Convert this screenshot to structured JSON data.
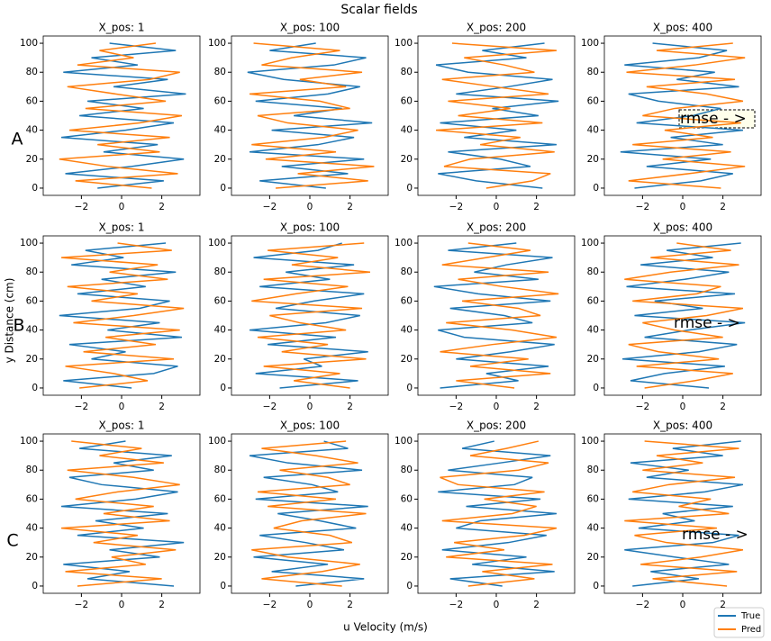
{
  "figure": {
    "title": "Scalar fields",
    "xlabel": "u Velocity (m/s)",
    "ylabel": "y Distance (cm)",
    "row_labels": [
      "A",
      "B",
      "C"
    ]
  },
  "chart_data": [
    {
      "type": "line",
      "title": "X_pos: 1",
      "y": [
        0,
        5,
        10,
        15,
        20,
        25,
        30,
        35,
        40,
        45,
        50,
        55,
        60,
        65,
        70,
        75,
        80,
        85,
        90,
        95,
        100
      ],
      "xlim": [
        -3.9,
        3.9
      ],
      "xticks": [
        {
          "value": -2,
          "label": "−2"
        },
        0,
        2
      ],
      "ylim": [
        -5,
        105
      ],
      "yticks": [
        0,
        20,
        40,
        60,
        80,
        100
      ],
      "series": [
        {
          "name": "True",
          "color": "#1f77b4",
          "values": [
            -1.2,
            2.1,
            -2.8,
            0.5,
            3.1,
            -0.9,
            1.8,
            -3.0,
            0.2,
            2.6,
            -2.1,
            1.1,
            -1.7,
            3.2,
            -0.4,
            2.3,
            -2.9,
            0.8,
            -1.5,
            2.7,
            -0.6
          ]
        },
        {
          "name": "Pred",
          "color": "#ff7f0e",
          "values": [
            1.5,
            -2.3,
            2.8,
            -0.7,
            -3.1,
            1.9,
            -1.2,
            2.4,
            -2.6,
            0.9,
            3.0,
            -1.8,
            2.2,
            -0.3,
            -2.7,
            1.4,
            2.9,
            -2.2,
            0.6,
            -1.1,
            1.7
          ]
        }
      ]
    },
    {
      "type": "line",
      "title": "X_pos: 100",
      "y": [
        0,
        5,
        10,
        15,
        20,
        25,
        30,
        35,
        40,
        45,
        50,
        55,
        60,
        65,
        70,
        75,
        80,
        85,
        90,
        95,
        100
      ],
      "xlim": [
        -3.9,
        3.9
      ],
      "xticks": [
        {
          "value": -2,
          "label": "−2"
        },
        0,
        2
      ],
      "ylim": [
        -5,
        105
      ],
      "yticks": [
        0,
        20,
        40,
        60,
        80,
        100
      ],
      "series": [
        {
          "name": "True",
          "color": "#1f77b4",
          "values": [
            0.8,
            -2.5,
            1.9,
            -1.4,
            2.7,
            -3.0,
            0.4,
            2.2,
            -1.9,
            3.1,
            -0.8,
            1.6,
            -2.7,
            0.9,
            2.5,
            -1.3,
            -3.1,
            1.2,
            2.8,
            -2.0,
            0.3
          ]
        },
        {
          "name": "Pred",
          "color": "#ff7f0e",
          "values": [
            -1.7,
            2.9,
            -0.6,
            3.2,
            -2.2,
            1.3,
            -2.9,
            0.7,
            2.4,
            -1.1,
            -2.6,
            2.0,
            0.5,
            -3.0,
            1.8,
            -0.5,
            2.6,
            -2.4,
            -0.9,
            1.5,
            -2.8
          ]
        }
      ]
    },
    {
      "type": "line",
      "title": "X_pos: 200",
      "y": [
        0,
        5,
        10,
        15,
        20,
        25,
        30,
        35,
        40,
        45,
        50,
        55,
        60,
        65,
        70,
        75,
        80,
        85,
        90,
        95,
        100
      ],
      "xlim": [
        -3.9,
        3.9
      ],
      "xticks": [
        {
          "value": -2,
          "label": "−2"
        },
        0,
        2
      ],
      "ylim": [
        -5,
        105
      ],
      "yticks": [
        0,
        20,
        40,
        60,
        80,
        100
      ],
      "series": [
        {
          "name": "True",
          "color": "#1f77b4",
          "values": [
            2.3,
            -1.0,
            -2.9,
            1.7,
            0.2,
            -2.4,
            3.0,
            -1.6,
            1.0,
            -2.8,
            2.1,
            -0.2,
            3.1,
            -2.0,
            0.6,
            2.8,
            -1.4,
            -3.0,
            1.5,
            -0.7,
            2.4
          ]
        },
        {
          "name": "Pred",
          "color": "#ff7f0e",
          "values": [
            -0.5,
            1.8,
            2.7,
            -2.6,
            -1.3,
            2.9,
            -0.8,
            1.2,
            -3.0,
            2.3,
            -1.9,
            0.7,
            -2.4,
            2.6,
            -0.1,
            -2.7,
            1.9,
            0.4,
            -1.6,
            3.0,
            -2.2
          ]
        }
      ]
    },
    {
      "type": "line",
      "title": "X_pos: 400",
      "annotation": "rmse - >",
      "y": [
        0,
        5,
        10,
        15,
        20,
        25,
        30,
        35,
        40,
        45,
        50,
        55,
        60,
        65,
        70,
        75,
        80,
        85,
        90,
        95,
        100
      ],
      "xlim": [
        -3.9,
        3.9
      ],
      "xticks": [
        {
          "value": -2,
          "label": "−2"
        },
        0,
        2
      ],
      "ylim": [
        -5,
        105
      ],
      "yticks": [
        0,
        20,
        40,
        60,
        80,
        100
      ],
      "series": [
        {
          "name": "True",
          "color": "#1f77b4",
          "values": [
            -2.4,
            0.9,
            2.5,
            -1.8,
            1.4,
            -3.1,
            2.0,
            -0.6,
            3.0,
            -2.3,
            0.5,
            1.9,
            -1.2,
            -2.7,
            2.8,
            -0.3,
            1.6,
            -2.9,
            0.8,
            2.2,
            -1.5
          ]
        },
        {
          "name": "Pred",
          "color": "#ff7f0e",
          "values": [
            1.9,
            -2.7,
            0.3,
            3.1,
            -1.0,
            2.4,
            -2.5,
            1.5,
            -0.9,
            2.9,
            -2.0,
            -0.4,
            3.0,
            1.2,
            -1.8,
            2.6,
            -2.8,
            0.6,
            3.1,
            -1.3,
            2.5
          ]
        }
      ]
    },
    {
      "type": "line",
      "title": "X_pos: 1",
      "y": [
        0,
        5,
        10,
        15,
        20,
        25,
        30,
        35,
        40,
        45,
        50,
        55,
        60,
        65,
        70,
        75,
        80,
        85,
        90,
        95,
        100
      ],
      "xlim": [
        -3.9,
        3.9
      ],
      "xticks": [
        {
          "value": -2,
          "label": "−2"
        },
        0,
        2
      ],
      "ylim": [
        -5,
        105
      ],
      "yticks": [
        0,
        20,
        40,
        60,
        80,
        100
      ],
      "series": [
        {
          "name": "True",
          "color": "#1f77b4",
          "values": [
            0.5,
            -2.9,
            1.6,
            2.8,
            -1.5,
            0.2,
            -2.6,
            3.0,
            -0.7,
            1.9,
            -3.1,
            0.9,
            2.4,
            -2.2,
            1.2,
            -1.0,
            2.7,
            -2.5,
            0.1,
            -1.8,
            2.2
          ]
        },
        {
          "name": "Pred",
          "color": "#ff7f0e",
          "values": [
            -2.1,
            1.3,
            -0.4,
            -2.8,
            2.6,
            -1.9,
            1.7,
            -0.8,
            2.9,
            -2.4,
            0.6,
            3.1,
            -1.5,
            0.8,
            -2.7,
            2.3,
            -0.6,
            1.8,
            -3.0,
            2.5,
            -0.2
          ]
        }
      ]
    },
    {
      "type": "line",
      "title": "X_pos: 100",
      "y": [
        0,
        5,
        10,
        15,
        20,
        25,
        30,
        35,
        40,
        45,
        50,
        55,
        60,
        65,
        70,
        75,
        80,
        85,
        90,
        95,
        100
      ],
      "xlim": [
        -3.9,
        3.9
      ],
      "xticks": [
        {
          "value": -2,
          "label": "−2"
        },
        0,
        2
      ],
      "ylim": [
        -5,
        105
      ],
      "yticks": [
        0,
        20,
        40,
        60,
        80,
        100
      ],
      "series": [
        {
          "name": "True",
          "color": "#1f77b4",
          "values": [
            -1.5,
            2.4,
            -2.7,
            0.6,
            -0.3,
            2.9,
            -2.1,
            1.3,
            -3.0,
            0.8,
            2.5,
            -1.7,
            0.2,
            2.7,
            -2.5,
            1.0,
            -1.2,
            2.2,
            -2.8,
            0.4,
            1.6
          ]
        },
        {
          "name": "Pred",
          "color": "#ff7f0e",
          "values": [
            2.0,
            -0.8,
            1.5,
            -2.3,
            2.8,
            -1.4,
            0.9,
            -2.6,
            1.8,
            -0.5,
            -2.0,
            2.6,
            -2.9,
            -0.7,
            1.9,
            -2.3,
            3.0,
            -0.9,
            1.4,
            -2.1,
            2.7
          ]
        }
      ]
    },
    {
      "type": "line",
      "title": "X_pos: 200",
      "y": [
        0,
        5,
        10,
        15,
        20,
        25,
        30,
        35,
        40,
        45,
        50,
        55,
        60,
        65,
        70,
        75,
        80,
        85,
        90,
        95,
        100
      ],
      "xlim": [
        -3.9,
        3.9
      ],
      "xticks": [
        {
          "value": -2,
          "label": "−2"
        },
        0,
        2
      ],
      "ylim": [
        -5,
        105
      ],
      "yticks": [
        0,
        20,
        40,
        60,
        80,
        100
      ],
      "series": [
        {
          "name": "True",
          "color": "#1f77b4",
          "values": [
            -2.8,
            1.1,
            -0.5,
            2.6,
            -2.0,
            0.7,
            2.9,
            -1.6,
            -2.9,
            1.8,
            0.4,
            -2.3,
            2.7,
            -0.9,
            -3.1,
            2.1,
            -1.1,
            0.5,
            2.8,
            -2.4,
            1.0
          ]
        },
        {
          "name": "Pred",
          "color": "#ff7f0e",
          "values": [
            0.9,
            -2.0,
            2.7,
            -1.3,
            1.6,
            -2.8,
            -0.2,
            3.0,
            0.8,
            -2.5,
            2.2,
            1.1,
            -1.7,
            3.1,
            0.3,
            -1.9,
            2.6,
            -2.7,
            -0.5,
            1.7,
            -1.4
          ]
        }
      ]
    },
    {
      "type": "line",
      "title": "X_pos: 400",
      "annotation": "rmse - >",
      "y": [
        0,
        5,
        10,
        15,
        20,
        25,
        30,
        35,
        40,
        45,
        50,
        55,
        60,
        65,
        70,
        75,
        80,
        85,
        90,
        95,
        100
      ],
      "xlim": [
        -3.9,
        3.9
      ],
      "xticks": [
        {
          "value": -2,
          "label": "−2"
        },
        0,
        2
      ],
      "ylim": [
        -5,
        105
      ],
      "yticks": [
        0,
        20,
        40,
        60,
        80,
        100
      ],
      "series": [
        {
          "name": "True",
          "color": "#1f77b4",
          "values": [
            1.3,
            -2.6,
            -0.9,
            2.1,
            -3.0,
            0.8,
            2.7,
            -1.9,
            0.3,
            3.1,
            -2.4,
            1.0,
            -1.4,
            2.6,
            -2.8,
            0.1,
            2.3,
            -2.1,
            1.5,
            -0.8,
            2.9
          ]
        },
        {
          "name": "Pred",
          "color": "#ff7f0e",
          "values": [
            -1.9,
            0.6,
            2.5,
            -2.3,
            1.8,
            -1.2,
            -2.7,
            2.0,
            -0.4,
            -2.0,
            1.2,
            3.0,
            -2.5,
            0.7,
            1.9,
            -2.9,
            -0.6,
            2.8,
            -1.6,
            2.4,
            -0.3
          ]
        }
      ]
    },
    {
      "type": "line",
      "title": "X_pos: 1",
      "y": [
        0,
        5,
        10,
        15,
        20,
        25,
        30,
        35,
        40,
        45,
        50,
        55,
        60,
        65,
        70,
        75,
        80,
        85,
        90,
        95,
        100
      ],
      "xlim": [
        -3.9,
        3.9
      ],
      "xticks": [
        {
          "value": -2,
          "label": "−2"
        },
        0,
        2
      ],
      "ylim": [
        -5,
        105
      ],
      "yticks": [
        0,
        20,
        40,
        60,
        80,
        100
      ],
      "series": [
        {
          "name": "True",
          "color": "#1f77b4",
          "values": [
            2.6,
            -1.7,
            0.4,
            -2.9,
            1.9,
            -0.6,
            3.1,
            -2.2,
            1.1,
            -1.3,
            2.3,
            -3.0,
            0.7,
            2.8,
            -1.0,
            -2.6,
            1.6,
            -0.4,
            2.5,
            -2.1,
            0.2
          ]
        },
        {
          "name": "Pred",
          "color": "#ff7f0e",
          "values": [
            -2.2,
            2.0,
            -2.8,
            1.2,
            -0.5,
            2.7,
            -1.4,
            0.8,
            -3.0,
            2.4,
            -0.9,
            1.6,
            -2.3,
            -0.2,
            2.9,
            0.6,
            -2.7,
            2.1,
            -1.1,
            1.0,
            -2.5
          ]
        }
      ]
    },
    {
      "type": "line",
      "title": "X_pos: 100",
      "y": [
        0,
        5,
        10,
        15,
        20,
        25,
        30,
        35,
        40,
        45,
        50,
        55,
        60,
        65,
        70,
        75,
        80,
        85,
        90,
        95,
        100
      ],
      "xlim": [
        -3.9,
        3.9
      ],
      "xticks": [
        {
          "value": -2,
          "label": "−2"
        },
        0,
        2
      ],
      "ylim": [
        -5,
        105
      ],
      "yticks": [
        0,
        20,
        40,
        60,
        80,
        100
      ],
      "series": [
        {
          "name": "True",
          "color": "#1f77b4",
          "values": [
            -0.7,
            2.7,
            -1.9,
            0.9,
            -2.8,
            1.7,
            -0.2,
            -2.5,
            2.3,
            0.5,
            -1.6,
            2.9,
            -2.7,
            1.4,
            0.1,
            -2.3,
            2.6,
            -1.1,
            -3.0,
            1.9,
            0.7
          ]
        },
        {
          "name": "Pred",
          "color": "#ff7f0e",
          "values": [
            1.6,
            -2.4,
            0.6,
            2.5,
            -1.1,
            -2.9,
            2.1,
            1.0,
            -1.8,
            -0.4,
            2.8,
            -2.1,
            1.3,
            -2.6,
            2.0,
            0.9,
            -1.5,
            2.4,
            0.3,
            -2.4,
            1.8
          ]
        }
      ]
    },
    {
      "type": "line",
      "title": "X_pos: 200",
      "y": [
        0,
        5,
        10,
        15,
        20,
        25,
        30,
        35,
        40,
        45,
        50,
        55,
        60,
        65,
        70,
        75,
        80,
        85,
        90,
        95,
        100
      ],
      "xlim": [
        -3.9,
        3.9
      ],
      "xticks": [
        {
          "value": -2,
          "label": "−2"
        },
        0,
        2
      ],
      "ylim": [
        -5,
        105
      ],
      "yticks": [
        0,
        20,
        40,
        60,
        80,
        100
      ],
      "series": [
        {
          "name": "True",
          "color": "#1f77b4",
          "values": [
            0.3,
            -2.3,
            2.9,
            -1.2,
            1.5,
            -2.7,
            0.6,
            2.5,
            -2.0,
            -0.8,
            3.0,
            -1.5,
            2.2,
            -2.9,
            0.9,
            1.8,
            -2.4,
            0.2,
            2.7,
            -1.7,
            -0.1
          ]
        },
        {
          "name": "Pred",
          "color": "#ff7f0e",
          "values": [
            -1.4,
            1.9,
            -0.7,
            2.8,
            -2.5,
            0.4,
            -2.1,
            1.4,
            3.0,
            -2.7,
            0.8,
            2.0,
            -0.6,
            2.4,
            -1.9,
            -2.8,
            1.1,
            2.6,
            -1.3,
            0.5,
            2.1
          ]
        }
      ]
    },
    {
      "type": "line",
      "title": "X_pos: 400",
      "annotation": "rmse - >",
      "y": [
        0,
        5,
        10,
        15,
        20,
        25,
        30,
        35,
        40,
        45,
        50,
        55,
        60,
        65,
        70,
        75,
        80,
        85,
        90,
        95,
        100
      ],
      "xlim": [
        -3.9,
        3.9
      ],
      "xticks": [
        {
          "value": -2,
          "label": "−2"
        },
        0,
        2
      ],
      "ylim": [
        -5,
        105
      ],
      "yticks": [
        0,
        20,
        40,
        60,
        80,
        100
      ],
      "series": [
        {
          "name": "True",
          "color": "#1f77b4",
          "values": [
            -2.5,
            0.8,
            -1.6,
            2.3,
            -0.4,
            -2.9,
            1.5,
            2.8,
            -2.2,
            0.6,
            -1.0,
            2.5,
            -2.7,
            1.1,
            3.0,
            -1.8,
            0.3,
            -2.6,
            2.0,
            -0.5,
            2.9
          ]
        },
        {
          "name": "Pred",
          "color": "#ff7f0e",
          "values": [
            2.2,
            -1.5,
            2.7,
            -2.1,
            0.9,
            3.0,
            -0.8,
            -2.4,
            1.7,
            -2.9,
            2.3,
            -0.2,
            1.4,
            -2.5,
            -0.7,
            2.6,
            -2.0,
            1.0,
            -1.3,
            2.8,
            -1.9
          ]
        }
      ]
    }
  ]
}
